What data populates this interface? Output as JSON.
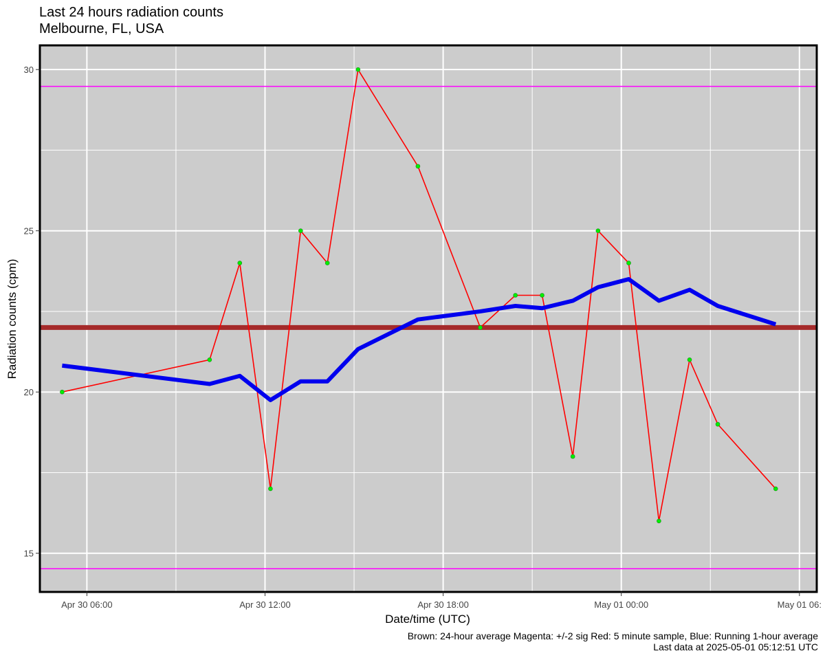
{
  "header": {
    "title": "Last 24 hours radiation counts",
    "subtitle": "Melbourne, FL, USA"
  },
  "footer": {
    "legend_text": "Brown:  24-hour average   Magenta:  +/-2 sig   Red: 5 minute sample, Blue: Running 1-hour average",
    "last_data": "Last data at 2025-05-01 05:12:51 UTC"
  },
  "chart_data": {
    "type": "line",
    "title": "Last 24 hours radiation counts",
    "subtitle": "Melbourne, FL, USA",
    "xlabel": "Date/time (UTC)",
    "ylabel": "Radiation counts (cpm)",
    "ylim": [
      13.8,
      30.75
    ],
    "xlim": [
      "2025-04-30T04:25",
      "2025-05-01T06:35"
    ],
    "x_ticks": [
      {
        "at": "2025-04-30T06:00",
        "label": "Apr 30 06:00"
      },
      {
        "at": "2025-04-30T12:00",
        "label": "Apr 30 12:00"
      },
      {
        "at": "2025-04-30T18:00",
        "label": "Apr 30 18:00"
      },
      {
        "at": "2025-05-01T00:00",
        "label": "May 01 00:00"
      },
      {
        "at": "2025-05-01T06:00",
        "label": "May 01 06:"
      }
    ],
    "x_minor_ticks": [
      "2025-04-30T09:00",
      "2025-04-30T15:00",
      "2025-04-30T21:00",
      "2025-05-01T03:00"
    ],
    "y_ticks": [
      15,
      20,
      25,
      30
    ],
    "y_minor_ticks": [
      17.5,
      22.5,
      27.5
    ],
    "grid": true,
    "background": "#cccccc",
    "series": [
      {
        "color": "#ff0000",
        "marker_color": "#00ee00",
        "points": [
          [
            "2025-04-30T05:10",
            20
          ],
          [
            "2025-04-30T10:08",
            21
          ],
          [
            "2025-04-30T11:09",
            24
          ],
          [
            "2025-04-30T12:11",
            17
          ],
          [
            "2025-04-30T13:12",
            25
          ],
          [
            "2025-04-30T14:06",
            24
          ],
          [
            "2025-04-30T15:08",
            30
          ],
          [
            "2025-04-30T17:09",
            27
          ],
          [
            "2025-04-30T19:15",
            22
          ],
          [
            "2025-04-30T20:26",
            23
          ],
          [
            "2025-04-30T21:20",
            23
          ],
          [
            "2025-04-30T22:22",
            18
          ],
          [
            "2025-04-30T23:13",
            25
          ],
          [
            "2025-05-01T00:15",
            24
          ],
          [
            "2025-05-01T01:16",
            16
          ],
          [
            "2025-05-01T02:18",
            21
          ],
          [
            "2025-05-01T03:15",
            19
          ],
          [
            "2025-05-01T05:12",
            17
          ]
        ]
      },
      {
        "color": "#0000ee",
        "points": [
          [
            "2025-04-30T05:10",
            20.82
          ],
          [
            "2025-04-30T10:08",
            20.25
          ],
          [
            "2025-04-30T11:09",
            20.5
          ],
          [
            "2025-04-30T12:11",
            19.75
          ],
          [
            "2025-04-30T13:12",
            20.33
          ],
          [
            "2025-04-30T14:06",
            20.33
          ],
          [
            "2025-04-30T15:08",
            21.33
          ],
          [
            "2025-04-30T17:09",
            22.25
          ],
          [
            "2025-04-30T19:15",
            22.5
          ],
          [
            "2025-04-30T20:26",
            22.67
          ],
          [
            "2025-04-30T21:20",
            22.6
          ],
          [
            "2025-04-30T22:22",
            22.83
          ],
          [
            "2025-04-30T23:13",
            23.25
          ],
          [
            "2025-05-01T00:15",
            23.5
          ],
          [
            "2025-05-01T01:16",
            22.83
          ],
          [
            "2025-05-01T02:18",
            23.17
          ],
          [
            "2025-05-01T03:15",
            22.67
          ],
          [
            "2025-05-01T05:12",
            22.1
          ]
        ]
      }
    ],
    "reference_lines": [
      {
        "value": 22.0,
        "color": "#a52a2a"
      },
      {
        "value": 29.48,
        "color": "#ff00ff"
      },
      {
        "value": 14.52,
        "color": "#ff00ff"
      }
    ]
  }
}
